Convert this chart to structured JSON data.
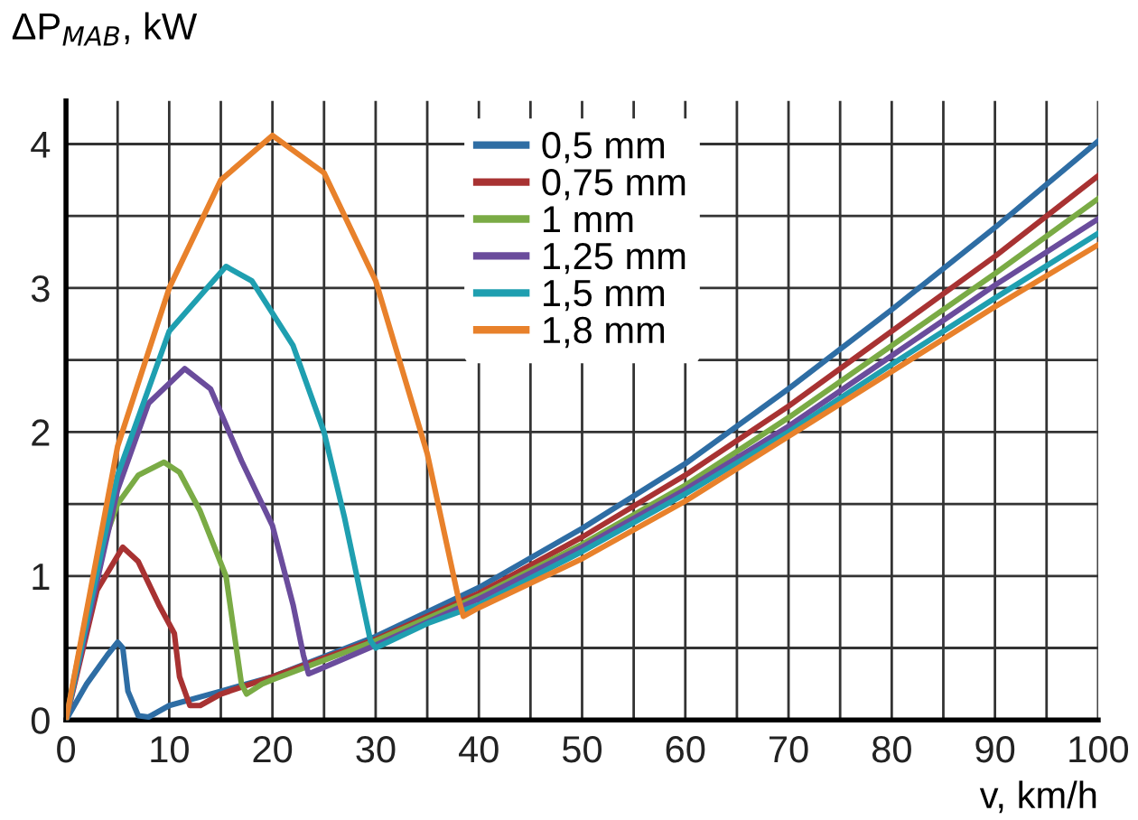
{
  "chart_data": {
    "type": "line",
    "ylabel": "ΔP$_{MAB}$, kW",
    "xlabel": "v, km/h",
    "xlim": [
      0,
      100
    ],
    "ylim": [
      0,
      4.3
    ],
    "xticks": [
      0,
      {
        "value": 5,
        "label": null
      },
      10,
      {
        "value": 15,
        "label": null
      },
      20,
      {
        "value": 25,
        "label": null
      },
      30,
      {
        "value": 35,
        "label": null
      },
      40,
      {
        "value": 45,
        "label": null
      },
      50,
      {
        "value": 55,
        "label": null
      },
      60,
      {
        "value": 65,
        "label": null
      },
      70,
      {
        "value": 75,
        "label": null
      },
      80,
      {
        "value": 85,
        "label": null
      },
      90,
      {
        "value": 95,
        "label": null
      },
      100
    ],
    "yticks": [
      0,
      {
        "value": 0.5,
        "label": null
      },
      1,
      {
        "value": 1.5,
        "label": null
      },
      2,
      {
        "value": 2.5,
        "label": null
      },
      3,
      {
        "value": 3.5,
        "label": null
      },
      4
    ],
    "grid": true,
    "legend": "top",
    "marker": "none",
    "line_style": "solid",
    "series": [
      {
        "name": "0,5 mm",
        "color": "#2e6da4",
        "x": [
          0,
          2,
          4,
          5,
          5.5,
          6,
          7,
          8,
          10,
          15,
          20,
          30,
          40,
          50,
          60,
          70,
          80,
          90,
          100
        ],
        "values": [
          0,
          0.25,
          0.45,
          0.54,
          0.5,
          0.2,
          0.03,
          0.02,
          0.1,
          0.2,
          0.3,
          0.58,
          0.92,
          1.33,
          1.78,
          2.3,
          2.85,
          3.42,
          4.02
        ]
      },
      {
        "name": "0,75 mm",
        "color": "#a83232",
        "x": [
          0,
          3,
          5.5,
          7,
          9,
          10.5,
          11,
          12,
          13,
          15,
          20,
          30,
          40,
          50,
          60,
          70,
          80,
          90,
          100
        ],
        "values": [
          0,
          0.9,
          1.2,
          1.1,
          0.8,
          0.6,
          0.3,
          0.1,
          0.1,
          0.18,
          0.3,
          0.56,
          0.88,
          1.27,
          1.7,
          2.18,
          2.7,
          3.22,
          3.78
        ]
      },
      {
        "name": "1 mm",
        "color": "#7aab45",
        "x": [
          0,
          3,
          5,
          7,
          9.5,
          11,
          13,
          15.5,
          16.5,
          17,
          17.5,
          19,
          20,
          30,
          40,
          50,
          60,
          70,
          80,
          90,
          100
        ],
        "values": [
          0,
          1.1,
          1.5,
          1.7,
          1.79,
          1.72,
          1.45,
          1.0,
          0.5,
          0.25,
          0.18,
          0.25,
          0.28,
          0.55,
          0.86,
          1.22,
          1.63,
          2.1,
          2.6,
          3.1,
          3.62
        ]
      },
      {
        "name": "1,25 mm",
        "color": "#6a4c9c",
        "x": [
          0,
          5,
          8,
          11.5,
          14,
          17,
          20,
          22,
          23,
          23.5,
          24.5,
          30,
          40,
          50,
          60,
          70,
          80,
          90,
          100
        ],
        "values": [
          0,
          1.6,
          2.2,
          2.44,
          2.3,
          1.8,
          1.35,
          0.8,
          0.45,
          0.32,
          0.35,
          0.52,
          0.84,
          1.2,
          1.6,
          2.04,
          2.53,
          3.02,
          3.48
        ]
      },
      {
        "name": "1,5 mm",
        "color": "#1f9fb0",
        "x": [
          0,
          5,
          10,
          15.5,
          18,
          22,
          25,
          27,
          29.5,
          30,
          35,
          40,
          50,
          60,
          70,
          80,
          90,
          100
        ],
        "values": [
          0,
          1.7,
          2.7,
          3.15,
          3.05,
          2.6,
          2.0,
          1.4,
          0.55,
          0.5,
          0.67,
          0.8,
          1.17,
          1.57,
          2.0,
          2.47,
          2.93,
          3.38
        ]
      },
      {
        "name": "1,8 mm",
        "color": "#e8812b",
        "x": [
          0,
          5,
          10,
          15,
          20,
          25,
          30,
          35,
          38,
          38.5,
          40,
          50,
          60,
          70,
          80,
          90,
          100
        ],
        "values": [
          0,
          1.9,
          3.0,
          3.75,
          4.06,
          3.8,
          3.05,
          1.85,
          0.85,
          0.72,
          0.78,
          1.12,
          1.52,
          1.97,
          2.42,
          2.87,
          3.3
        ]
      }
    ]
  }
}
